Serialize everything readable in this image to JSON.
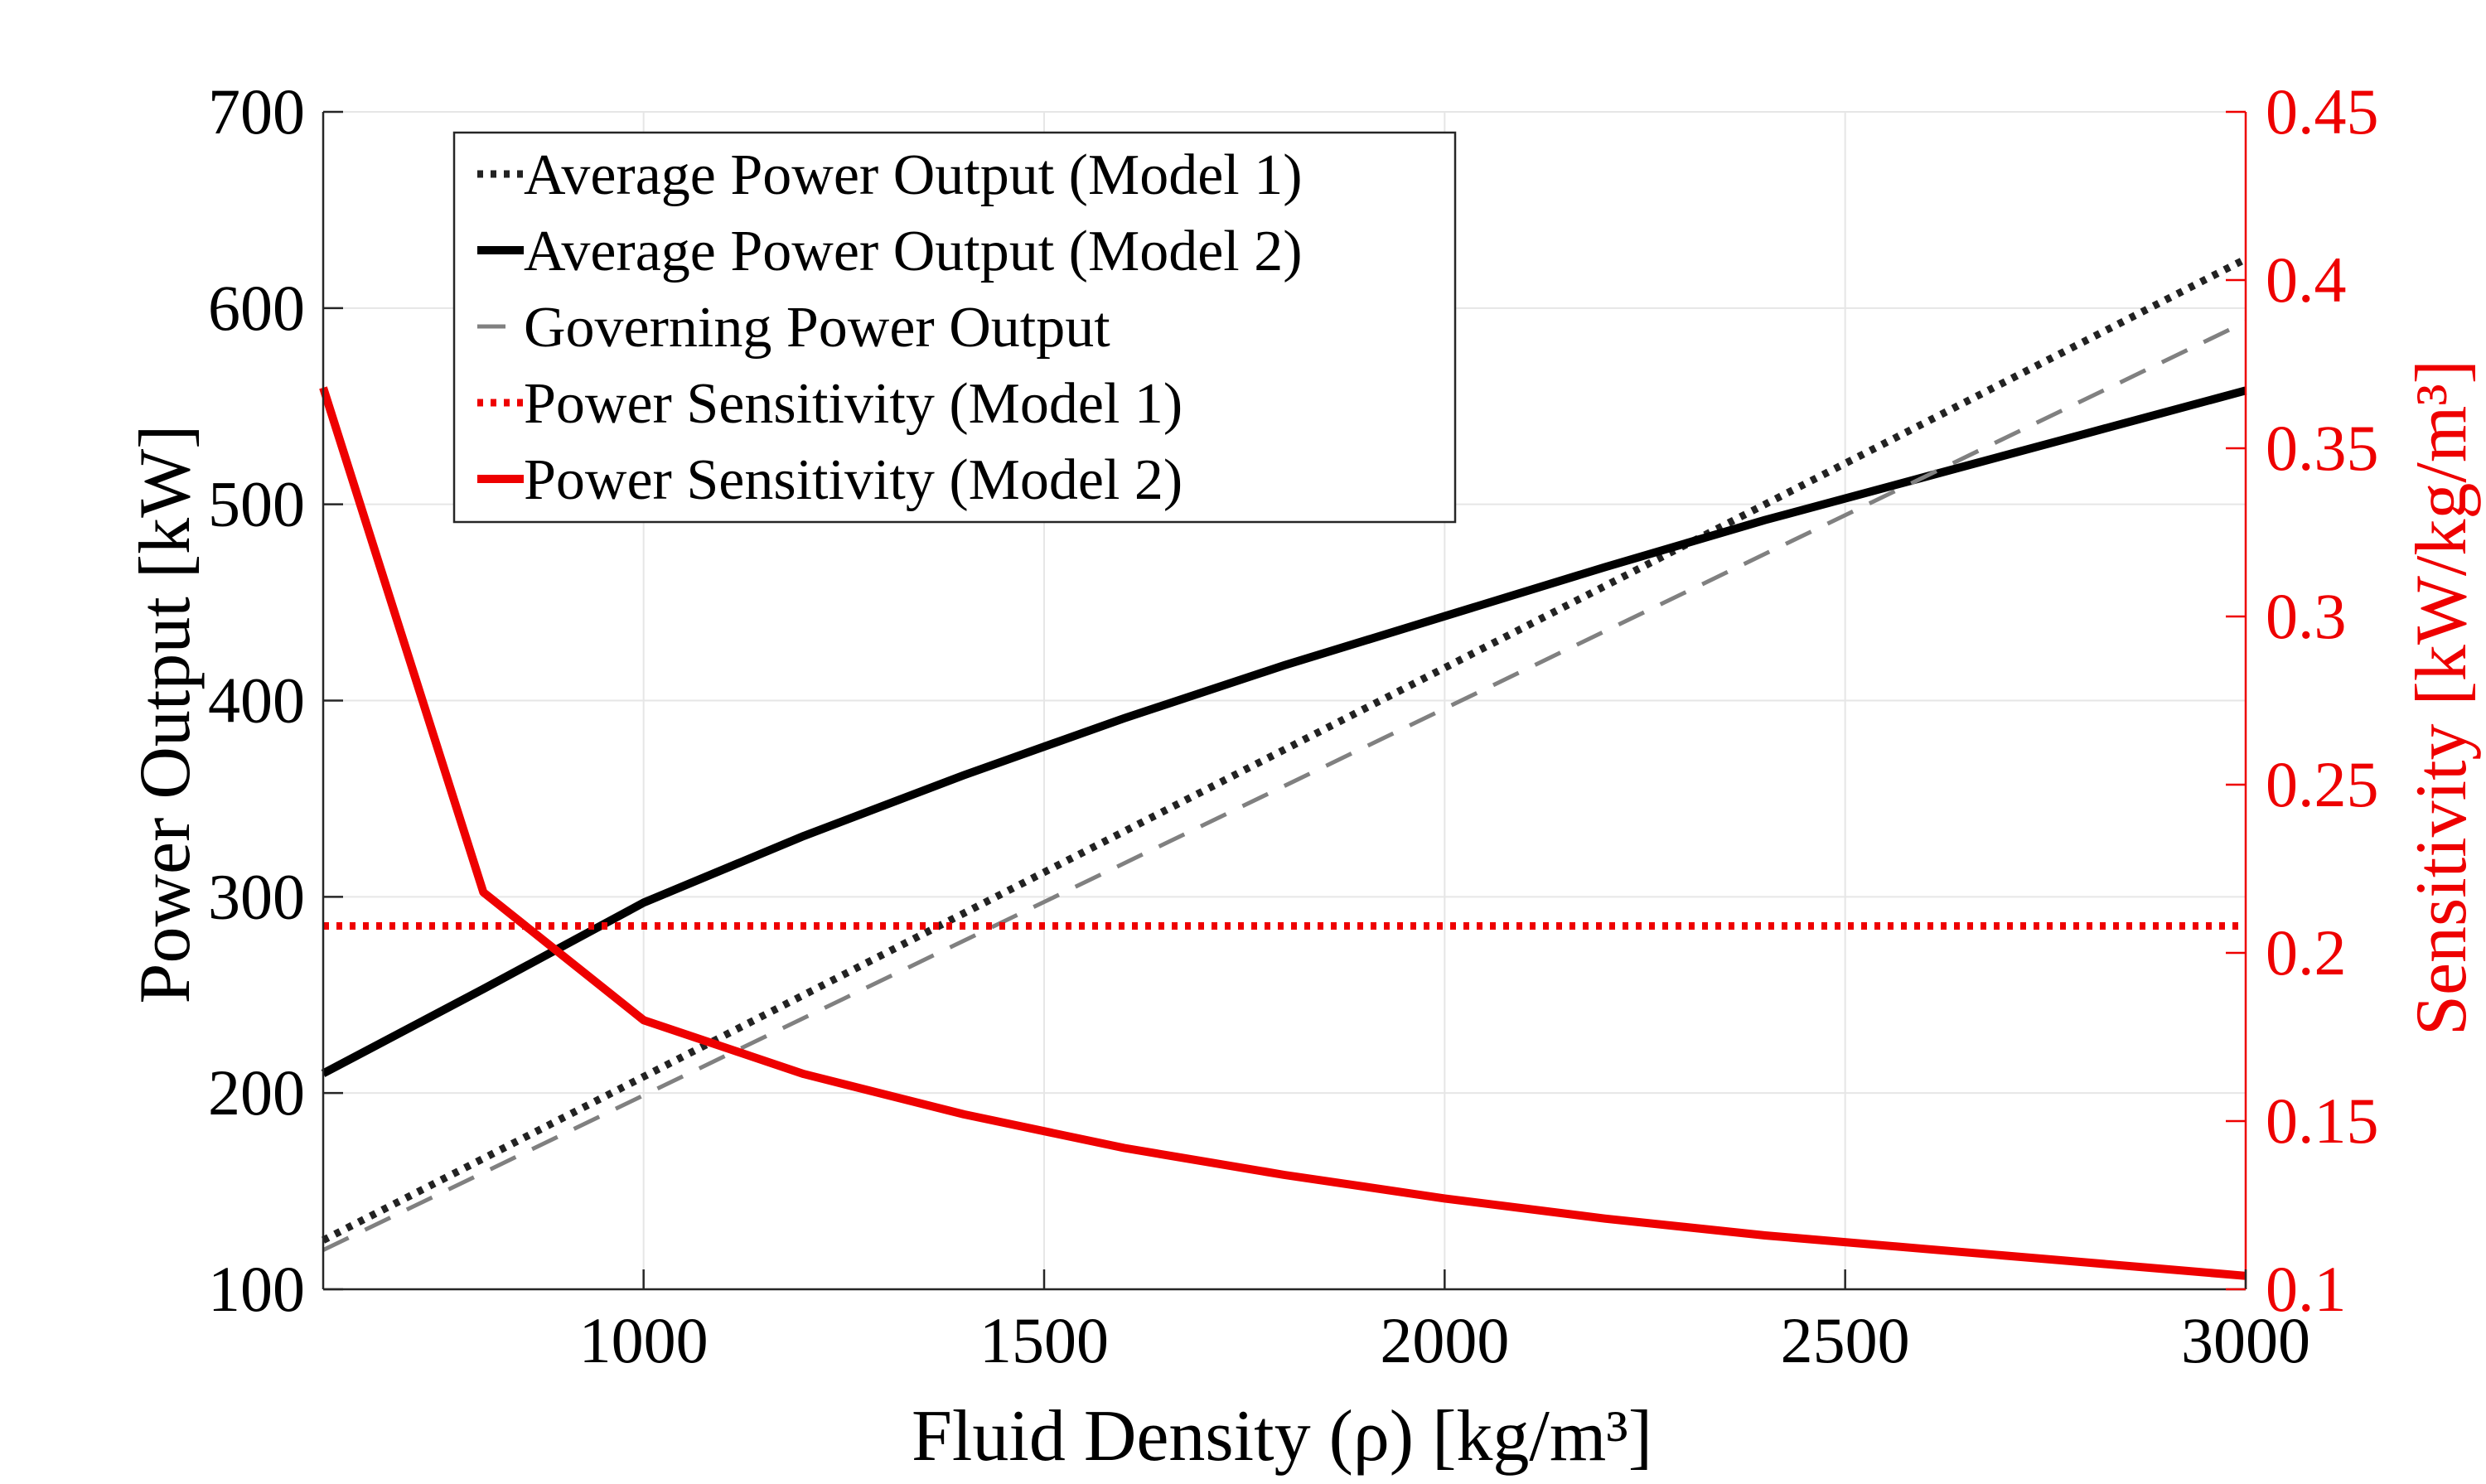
{
  "chart_data": {
    "type": "line",
    "title": "",
    "xlabel": "Fluid Density (ρ) [kg/m³]",
    "ylabel_left": "Power Output [kW]",
    "ylabel_right": "Sensitivity [kW/kg/m³]",
    "xlim": [
      600,
      3000
    ],
    "ylim_left": [
      100,
      700
    ],
    "ylim_right": [
      0.1,
      0.45
    ],
    "x_ticks": [
      "1000",
      "1500",
      "2000",
      "2500",
      "3000"
    ],
    "y_ticks_left": [
      "100",
      "200",
      "300",
      "400",
      "500",
      "600",
      "700"
    ],
    "y_ticks_right": [
      "0.1",
      "0.15",
      "0.2",
      "0.25",
      "0.3",
      "0.35",
      "0.4",
      "0.45"
    ],
    "grid": true,
    "legend_position": "top-left",
    "colors": {
      "black": "#000000",
      "dark_gray": "#222222",
      "gray": "#808080",
      "red": "#ee0000"
    },
    "series": [
      {
        "name": "Average Power Output (Model 1)",
        "axis": "left",
        "style": "dotted",
        "color": "#222222",
        "x": [
          600,
          3000
        ],
        "y": [
          125,
          625
        ]
      },
      {
        "name": "Average Power Output (Model 2)",
        "axis": "left",
        "style": "solid",
        "color": "#000000",
        "x": [
          600,
          800,
          1000,
          1200,
          1400,
          1600,
          1800,
          2000,
          2200,
          2400,
          2600,
          2800,
          3000
        ],
        "y": [
          210,
          253,
          297,
          331,
          362,
          391,
          418,
          443,
          468,
          492,
          514,
          536,
          558
        ]
      },
      {
        "name": "Governing Power Output",
        "axis": "left",
        "style": "dashed",
        "color": "#808080",
        "x": [
          600,
          3000
        ],
        "y": [
          120,
          593
        ]
      },
      {
        "name": "Power Sensitivity (Model 1)",
        "axis": "right",
        "style": "dotted",
        "color": "#ee0000",
        "x": [
          600,
          3000
        ],
        "y": [
          0.208,
          0.208
        ]
      },
      {
        "name": "Power Sensitivity (Model 2)",
        "axis": "right",
        "style": "solid",
        "color": "#ee0000",
        "x": [
          600,
          800,
          1000,
          1200,
          1400,
          1600,
          1800,
          2000,
          2200,
          2400,
          2600,
          2800,
          3000
        ],
        "y": [
          0.368,
          0.218,
          0.18,
          0.164,
          0.152,
          0.142,
          0.134,
          0.127,
          0.121,
          0.116,
          0.112,
          0.108,
          0.104
        ]
      }
    ]
  }
}
